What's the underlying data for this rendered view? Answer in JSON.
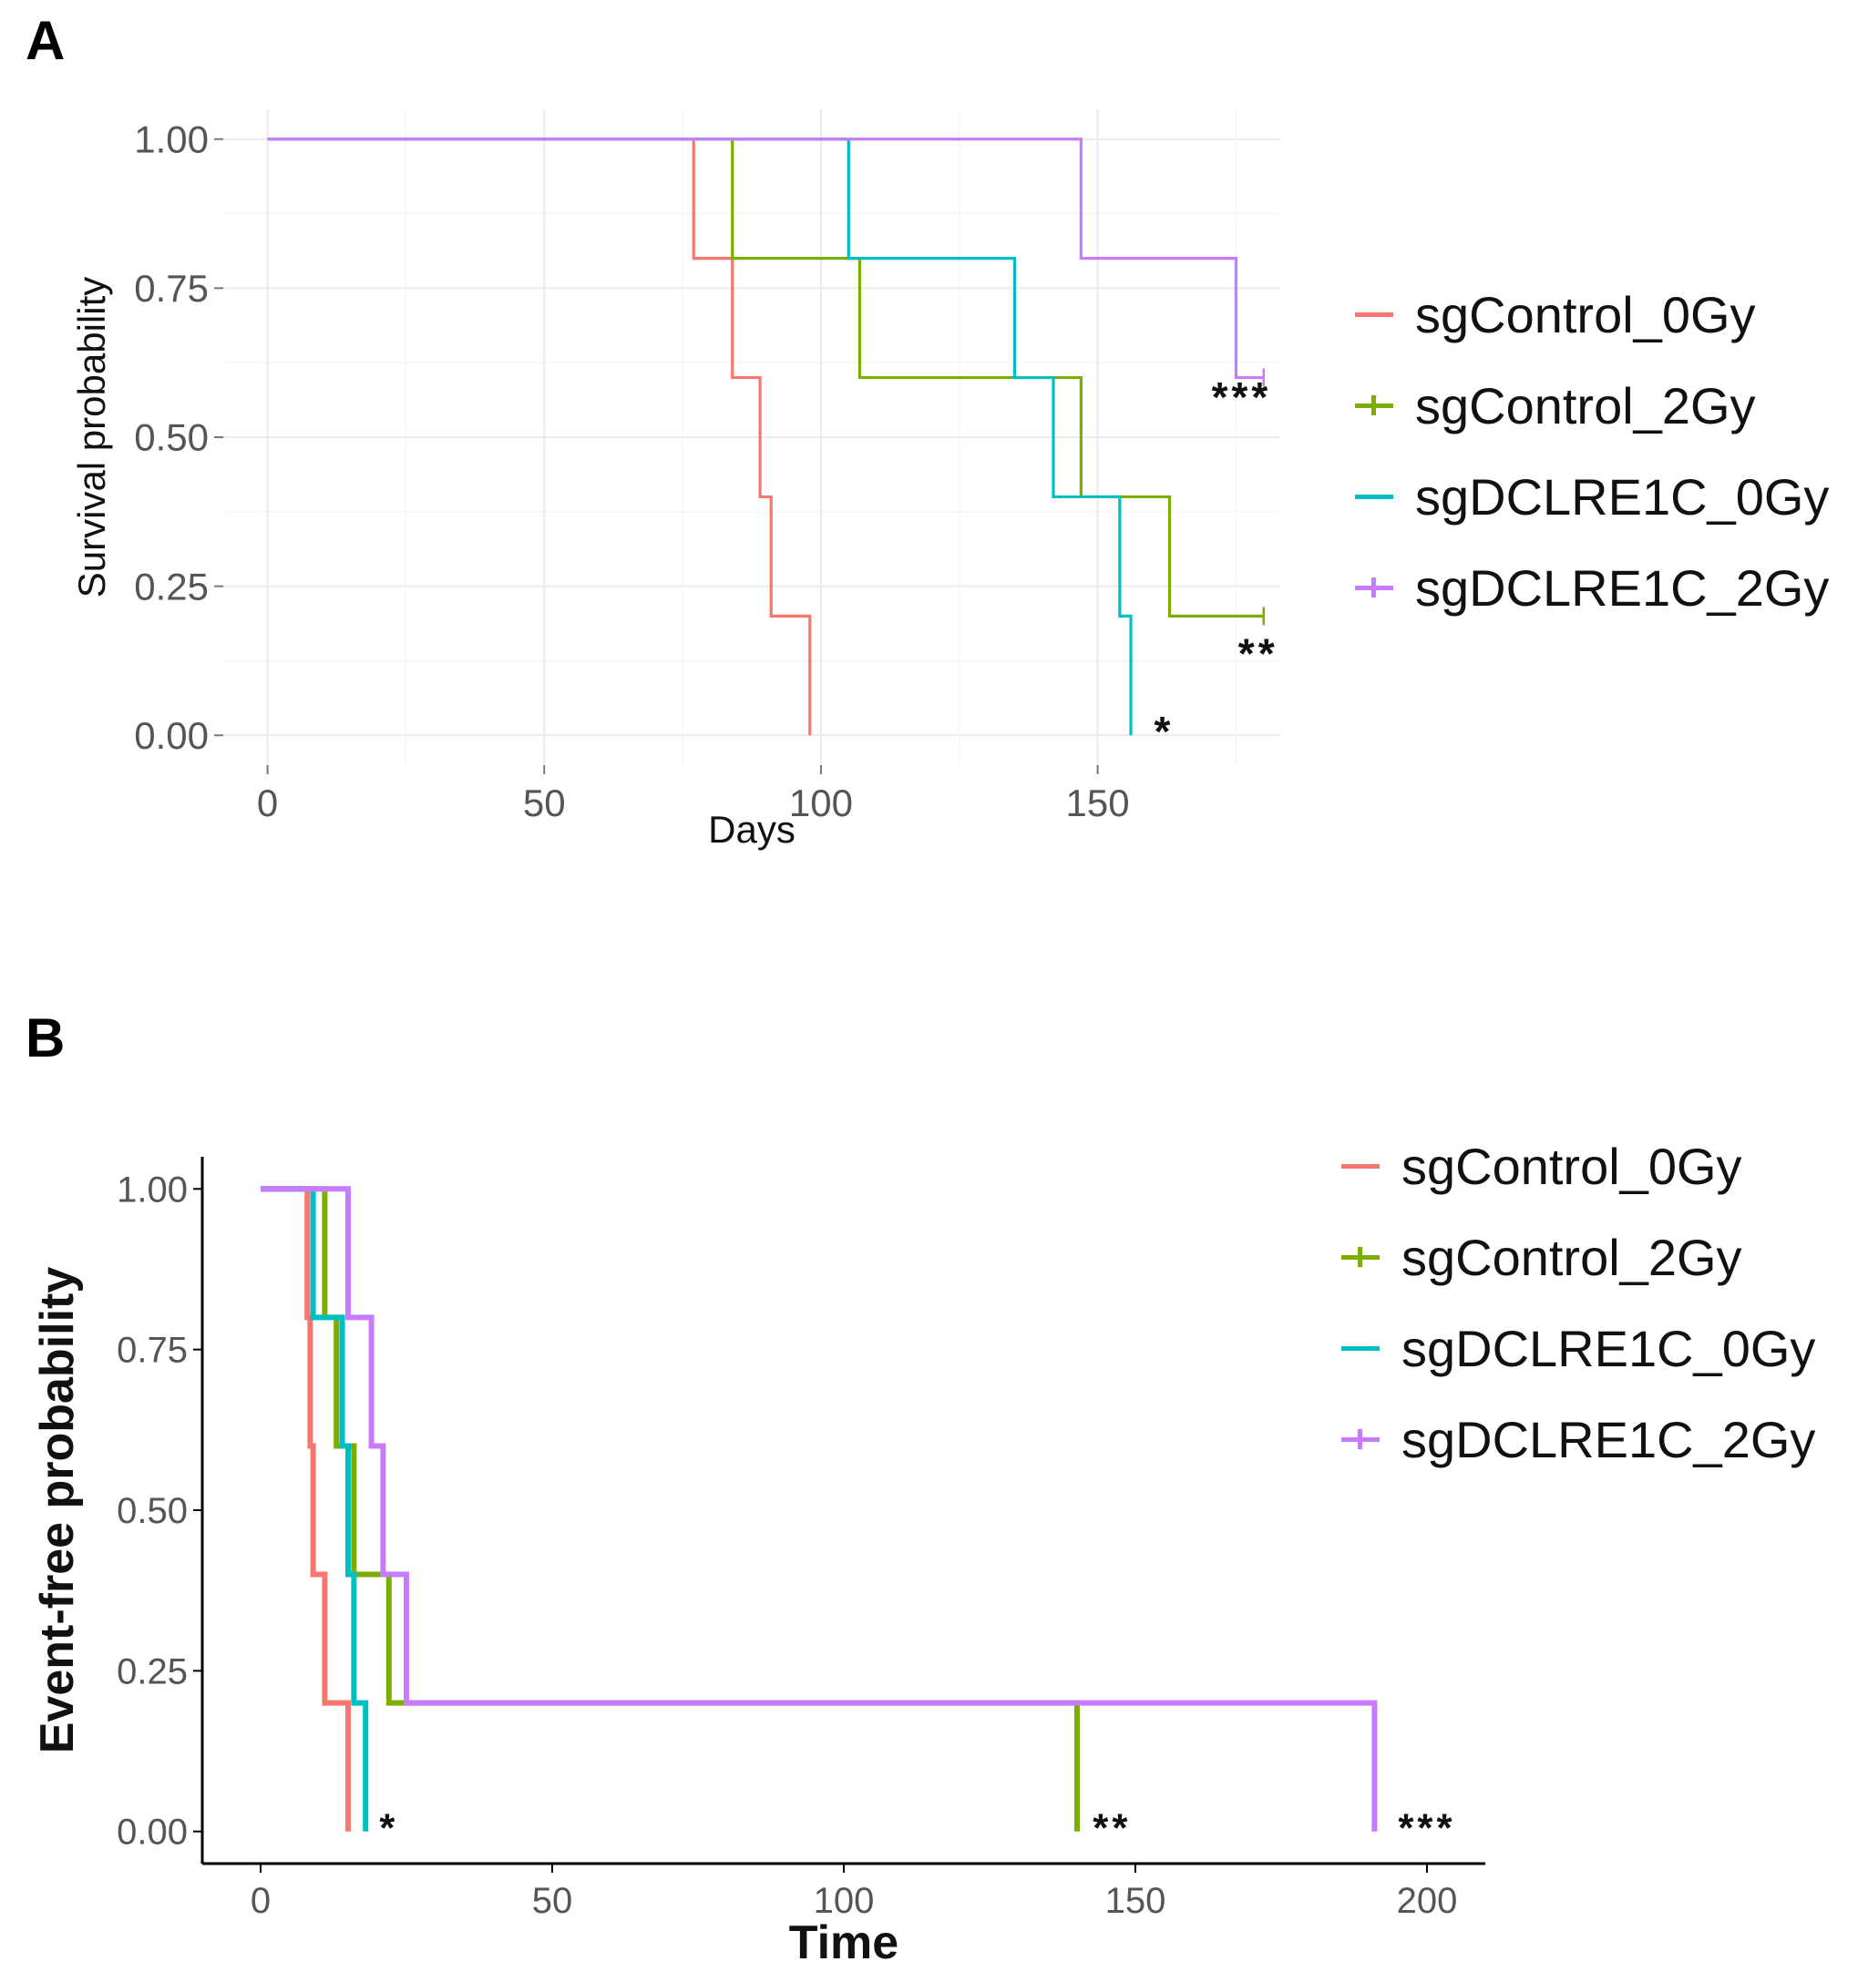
{
  "chart_data": [
    {
      "panel": "A",
      "type": "line",
      "subtype": "kaplan-meier-step",
      "xlabel": "Days",
      "ylabel": "Survival probability",
      "xticks": [
        "0",
        "50",
        "100",
        "150"
      ],
      "yticks": [
        "0.00",
        "0.25",
        "0.50",
        "0.75",
        "1.00"
      ],
      "xlim": [
        -8,
        183
      ],
      "ylim": [
        -0.05,
        1.05
      ],
      "grid": true,
      "legend_position": "right",
      "series": [
        {
          "name": "sgControl_0Gy",
          "color": "#F8766D",
          "x": [
            0,
            77,
            84,
            89,
            91,
            98
          ],
          "y": [
            1.0,
            0.8,
            0.6,
            0.4,
            0.2,
            0.0
          ],
          "censor": []
        },
        {
          "name": "sgControl_2Gy",
          "color": "#7CAE00",
          "x": [
            0,
            84,
            107,
            147,
            163,
            180
          ],
          "y": [
            1.0,
            0.8,
            0.6,
            0.4,
            0.2,
            0.2
          ],
          "censor": [
            [
              180,
              0.2
            ]
          ]
        },
        {
          "name": "sgDCLRE1C_0Gy",
          "color": "#00BFC4",
          "x": [
            0,
            105,
            135,
            142,
            154,
            156
          ],
          "y": [
            1.0,
            0.8,
            0.6,
            0.4,
            0.2,
            0.0
          ],
          "censor": []
        },
        {
          "name": "sgDCLRE1C_2Gy",
          "color": "#C77CFF",
          "x": [
            0,
            147,
            175,
            180
          ],
          "y": [
            1.0,
            0.8,
            0.6,
            0.6
          ],
          "censor": [
            [
              180,
              0.6
            ]
          ]
        }
      ],
      "annotations": [
        {
          "text": "***",
          "x": 176,
          "y": 0.56
        },
        {
          "text": "**",
          "x": 179,
          "y": 0.13
        },
        {
          "text": "*",
          "x": 162,
          "y": 0.0
        }
      ]
    },
    {
      "panel": "B",
      "type": "line",
      "subtype": "kaplan-meier-step",
      "xlabel": "Time",
      "ylabel": "Event-free probability",
      "xticks": [
        "0",
        "50",
        "100",
        "150",
        "200"
      ],
      "yticks": [
        "0.00",
        "0.25",
        "0.50",
        "0.75",
        "1.00"
      ],
      "xlim": [
        -10,
        210
      ],
      "ylim": [
        -0.05,
        1.05
      ],
      "grid": false,
      "legend_position": "right",
      "series": [
        {
          "name": "sgControl_0Gy",
          "color": "#F8766D",
          "x": [
            0,
            8,
            8.5,
            9,
            11,
            15
          ],
          "y": [
            1.0,
            0.8,
            0.6,
            0.4,
            0.2,
            0.0
          ],
          "censor": []
        },
        {
          "name": "sgControl_2Gy",
          "color": "#7CAE00",
          "x": [
            0,
            11,
            13,
            16,
            22,
            140
          ],
          "y": [
            1.0,
            0.8,
            0.6,
            0.4,
            0.2,
            0.0
          ],
          "censor": []
        },
        {
          "name": "sgDCLRE1C_0Gy",
          "color": "#00BFC4",
          "x": [
            0,
            9,
            14,
            15,
            16,
            18
          ],
          "y": [
            1.0,
            0.8,
            0.6,
            0.4,
            0.2,
            0.0
          ],
          "censor": []
        },
        {
          "name": "sgDCLRE1C_2Gy",
          "color": "#C77CFF",
          "x": [
            0,
            15,
            19,
            21,
            25,
            191
          ],
          "y": [
            1.0,
            0.8,
            0.6,
            0.4,
            0.2,
            0.0
          ],
          "censor": []
        }
      ],
      "annotations": [
        {
          "text": "*",
          "x": 22,
          "y": 0.0
        },
        {
          "text": "**",
          "x": 146,
          "y": 0.0
        },
        {
          "text": "***",
          "x": 200,
          "y": 0.0
        }
      ]
    }
  ],
  "panels": {
    "a": {
      "label": "A"
    },
    "b": {
      "label": "B"
    }
  },
  "legend": [
    {
      "name": "sgControl_0Gy",
      "color": "#F8766D",
      "censor_mark": false
    },
    {
      "name": "sgControl_2Gy",
      "color": "#7CAE00",
      "censor_mark": true
    },
    {
      "name": "sgDCLRE1C_0Gy",
      "color": "#00BFC4",
      "censor_mark": false
    },
    {
      "name": "sgDCLRE1C_2Gy",
      "color": "#C77CFF",
      "censor_mark": true
    }
  ]
}
